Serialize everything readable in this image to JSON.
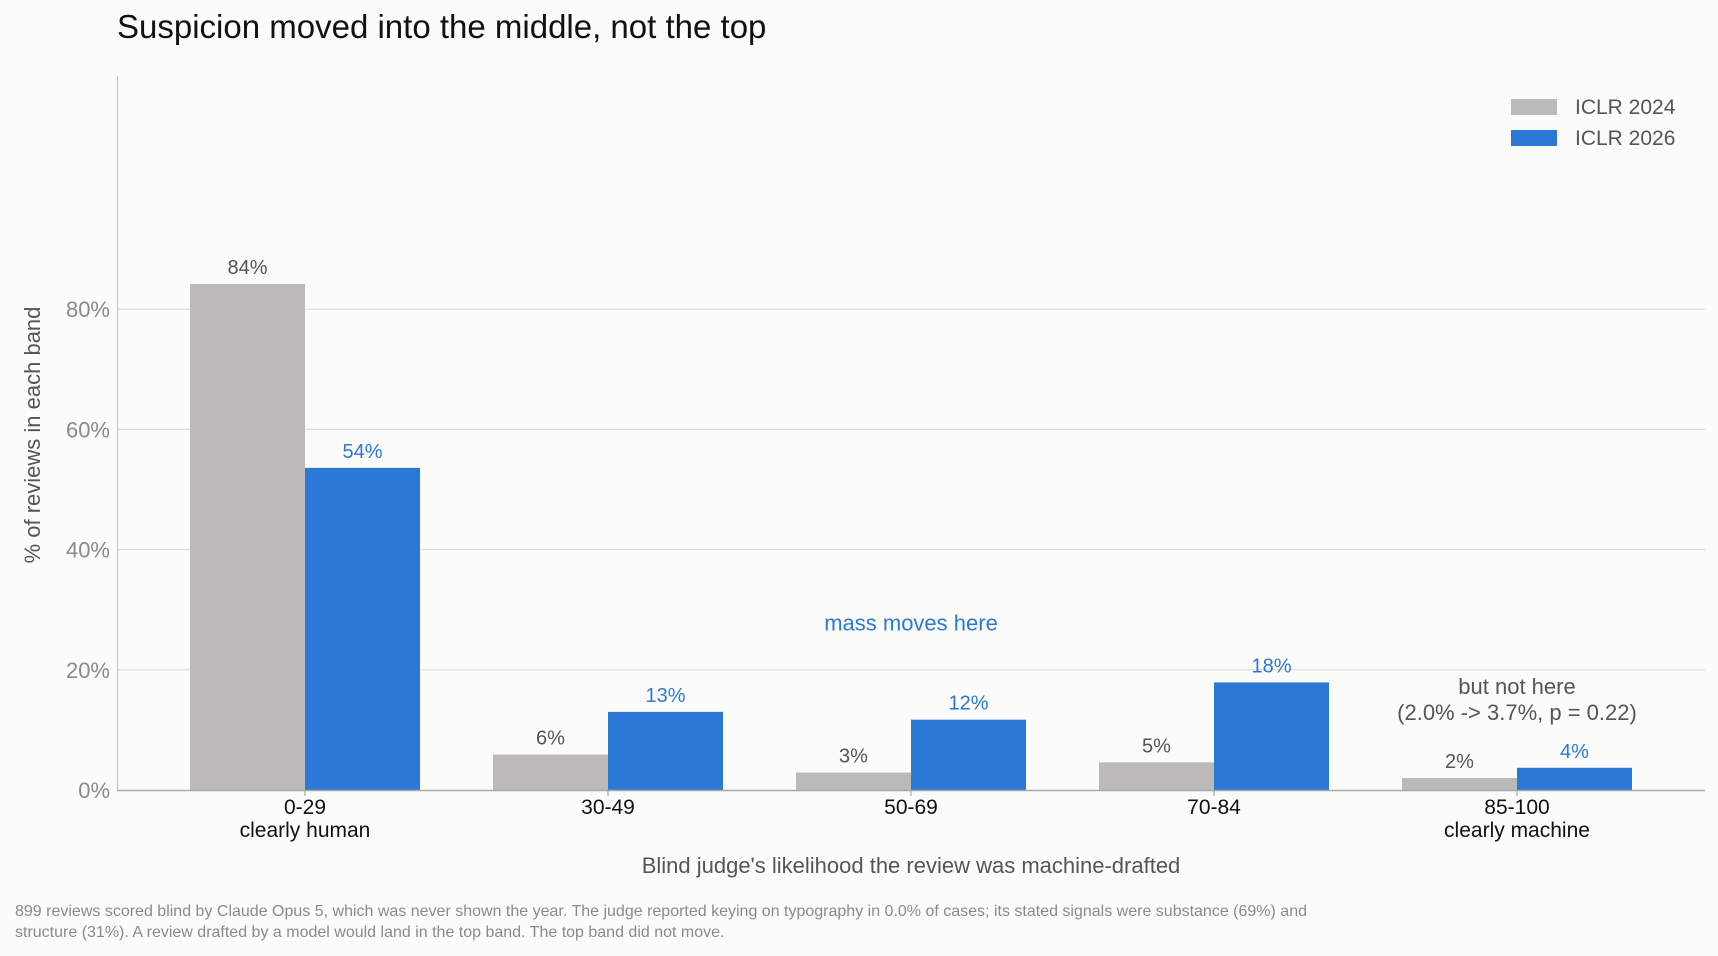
{
  "chart_data": {
    "type": "bar",
    "title": "Suspicion moved into the middle, not the top",
    "xlabel": "Blind judge's likelihood the review was machine-drafted",
    "ylabel": "% of reviews in each band",
    "ylim": [
      0,
      94
    ],
    "yticks": [
      0,
      20,
      40,
      60,
      80
    ],
    "ytick_labels": [
      "0%",
      "20%",
      "40%",
      "60%",
      "80%"
    ],
    "grid": "horizontal",
    "legend_position": "top-right",
    "categories": [
      {
        "label": "0-29",
        "sublabel": "clearly human"
      },
      {
        "label": "30-49",
        "sublabel": ""
      },
      {
        "label": "50-69",
        "sublabel": ""
      },
      {
        "label": "70-84",
        "sublabel": ""
      },
      {
        "label": "85-100",
        "sublabel": "clearly machine"
      }
    ],
    "series": [
      {
        "name": "ICLR 2024",
        "color": "#bcbab6",
        "label_color": "#555555",
        "values": [
          84.2,
          5.9,
          2.9,
          4.6,
          2.0
        ],
        "labels": [
          "84%",
          "6%",
          "3%",
          "5%",
          "2%"
        ]
      },
      {
        "name": "ICLR 2026",
        "color": "#2b78d6",
        "label_color": "#2b78d6",
        "values": [
          53.6,
          13.0,
          11.7,
          17.9,
          3.7
        ],
        "labels": [
          "54%",
          "13%",
          "12%",
          "18%",
          "4%"
        ]
      }
    ],
    "annotations": [
      {
        "name": "mass-moves-annotation",
        "category_index": 2,
        "y": 26.5,
        "lines": [
          "mass moves here"
        ],
        "color": "#2b78d6"
      },
      {
        "name": "not-here-annotation",
        "category_index": 4,
        "y": 16,
        "lines": [
          "but not here",
          "(2.0% -> 3.7%, p = 0.22)"
        ],
        "color": "#555555"
      }
    ]
  },
  "footnote": "899 reviews scored blind by Claude Opus 5, which was never shown the year. The judge reported keying on typography in 0.0% of cases; its stated signals were substance (69%) and structure (31%). A review drafted by a model would land in the top band. The top band did not move."
}
